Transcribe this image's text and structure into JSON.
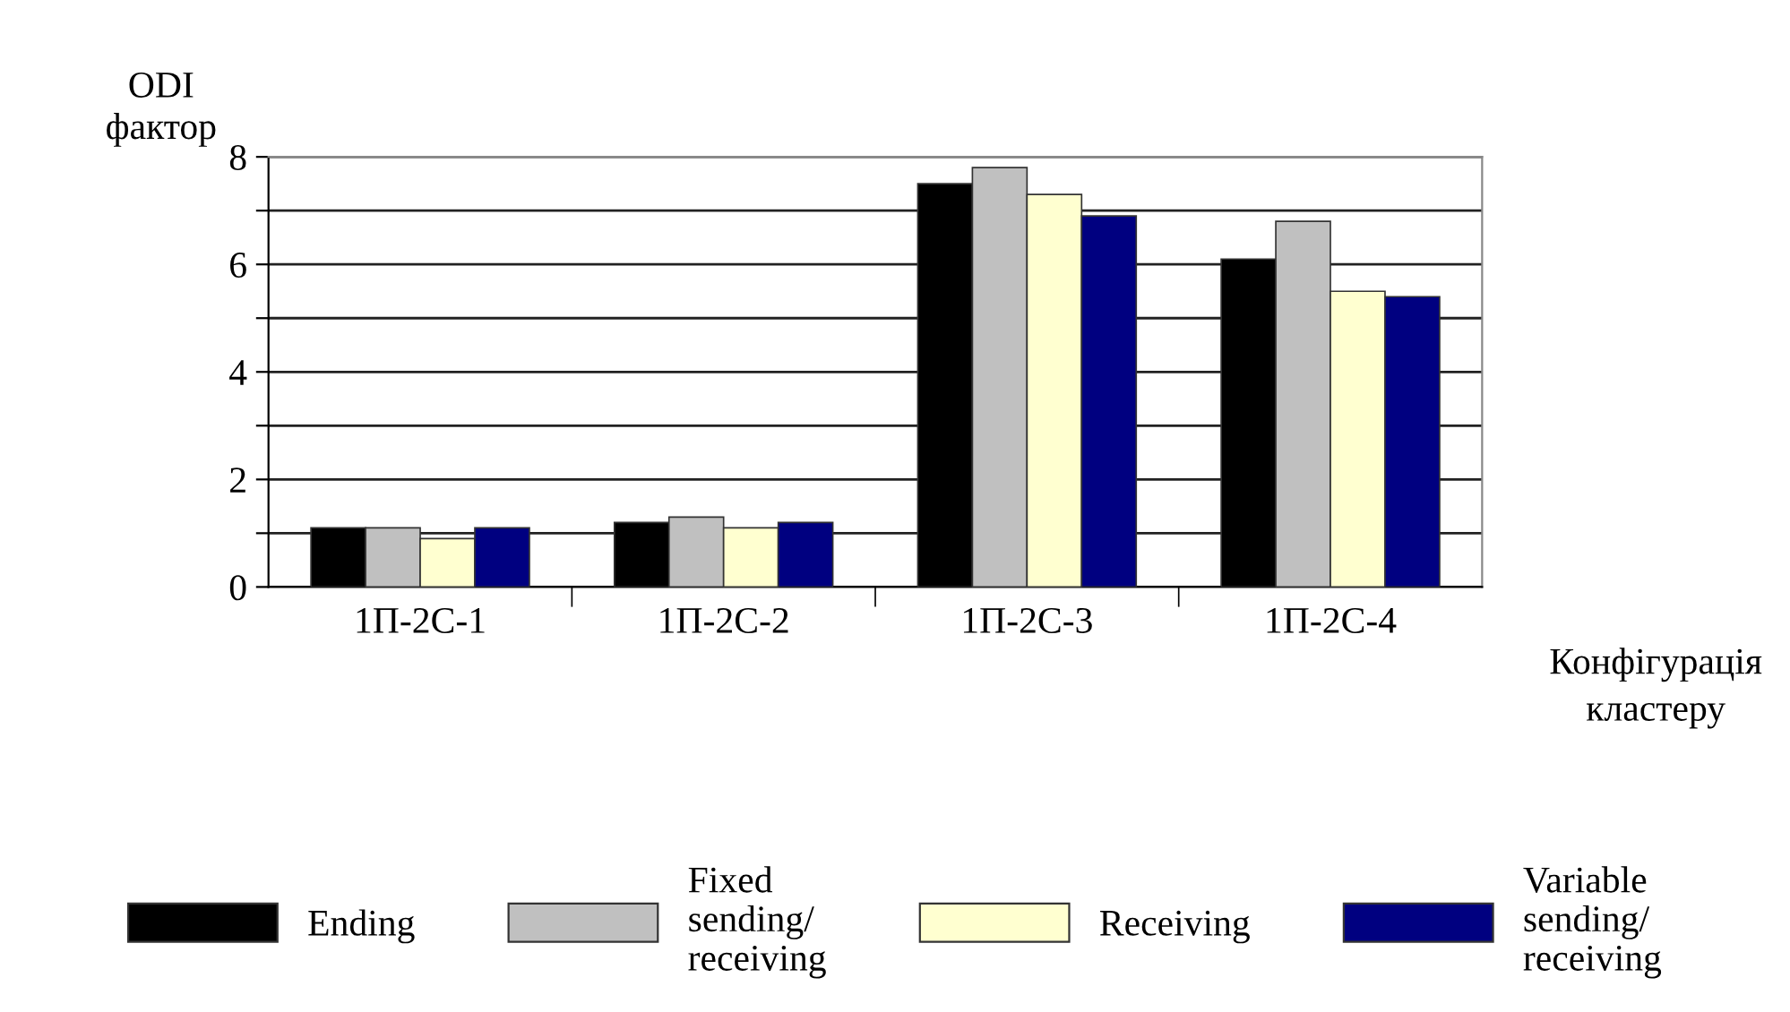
{
  "chart_data": {
    "type": "bar",
    "ylabel": "ODI\nфактор",
    "xlabel": "Конфігурація\nкластеру",
    "categories": [
      "1П-2С-1",
      "1П-2С-2",
      "1П-2С-3",
      "1П-2С-4"
    ],
    "series": [
      {
        "name": "Ending",
        "color": "#000000",
        "values": [
          1.1,
          1.2,
          7.5,
          6.1
        ]
      },
      {
        "name": "Fixed\nsending/\nreceiving",
        "color": "#c0c0c0",
        "values": [
          1.1,
          1.3,
          7.8,
          6.8
        ]
      },
      {
        "name": "Receiving",
        "color": "#ffffd0",
        "values": [
          0.9,
          1.1,
          7.3,
          5.5
        ]
      },
      {
        "name": "Variable\nsending/\nreceiving",
        "color": "#000080",
        "values": [
          1.1,
          1.2,
          6.9,
          5.4
        ]
      }
    ],
    "ylim": [
      0,
      8
    ],
    "yticks": [
      0,
      {
        "value": 1,
        "label": null
      },
      2,
      {
        "value": 3,
        "label": null
      },
      4,
      {
        "value": 5,
        "label": null
      },
      6,
      {
        "value": 7,
        "label": null
      },
      8
    ],
    "grid": "y",
    "legend": "bottom"
  }
}
